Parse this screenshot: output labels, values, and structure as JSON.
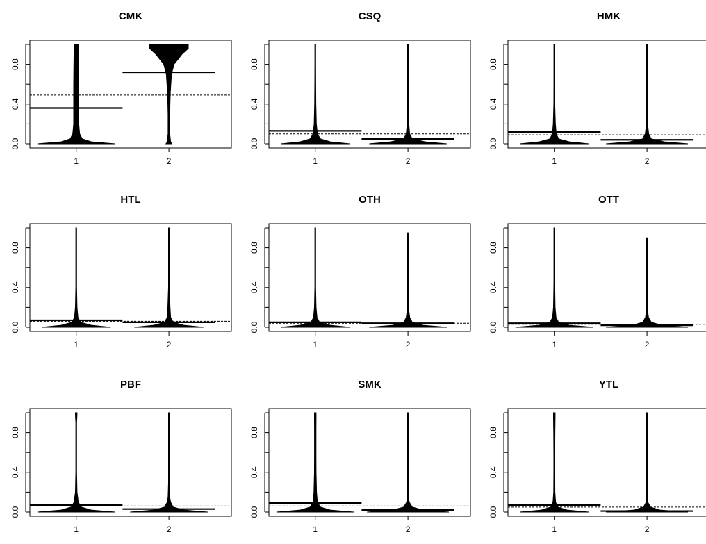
{
  "chart_data": [
    {
      "type": "beanplot",
      "title": "CMK",
      "categories": [
        "1",
        "2"
      ],
      "ylim": [
        0,
        1
      ],
      "yticks": [
        "0.0",
        "0.4",
        "0.8"
      ],
      "overall_mean": 0.49,
      "group_means": [
        0.36,
        0.72
      ],
      "grid": false,
      "series": [
        {
          "name": "",
          "category": "1",
          "max": 1.0,
          "density": [
            [
              0.0,
              0.9
            ],
            [
              0.02,
              0.35
            ],
            [
              0.05,
              0.14
            ],
            [
              0.1,
              0.08
            ],
            [
              0.2,
              0.06
            ],
            [
              0.4,
              0.06
            ],
            [
              0.6,
              0.06
            ],
            [
              0.8,
              0.055
            ],
            [
              0.95,
              0.05
            ],
            [
              1.0,
              0.05
            ]
          ]
        },
        {
          "name": "",
          "category": "2",
          "max": 1.0,
          "density": [
            [
              0.0,
              0.07
            ],
            [
              0.02,
              0.04
            ],
            [
              0.1,
              0.02
            ],
            [
              0.3,
              0.02
            ],
            [
              0.5,
              0.03
            ],
            [
              0.7,
              0.06
            ],
            [
              0.8,
              0.12
            ],
            [
              0.9,
              0.3
            ],
            [
              0.96,
              0.45
            ],
            [
              1.0,
              0.45
            ]
          ]
        }
      ]
    },
    {
      "type": "beanplot",
      "title": "CSQ",
      "categories": [
        "1",
        "2"
      ],
      "ylim": [
        0,
        1
      ],
      "yticks": [
        "0.0",
        "0.4",
        "0.8"
      ],
      "overall_mean": 0.1,
      "group_means": [
        0.13,
        0.05
      ],
      "grid": false,
      "series": [
        {
          "name": "",
          "category": "1",
          "max": 1.0,
          "density": [
            [
              0.0,
              0.8
            ],
            [
              0.02,
              0.35
            ],
            [
              0.05,
              0.12
            ],
            [
              0.1,
              0.05
            ],
            [
              0.2,
              0.025
            ],
            [
              0.4,
              0.015
            ],
            [
              0.6,
              0.012
            ],
            [
              0.8,
              0.01
            ],
            [
              1.0,
              0.01
            ]
          ]
        },
        {
          "name": "",
          "category": "2",
          "max": 1.0,
          "density": [
            [
              0.0,
              0.9
            ],
            [
              0.02,
              0.4
            ],
            [
              0.05,
              0.1
            ],
            [
              0.1,
              0.04
            ],
            [
              0.2,
              0.02
            ],
            [
              0.3,
              0.005
            ],
            [
              0.6,
              0.003
            ],
            [
              1.0,
              0.003
            ]
          ]
        }
      ]
    },
    {
      "type": "beanplot",
      "title": "HMK",
      "categories": [
        "1",
        "2"
      ],
      "ylim": [
        0,
        1
      ],
      "yticks": [
        "0.0",
        "0.4",
        "0.8"
      ],
      "overall_mean": 0.09,
      "group_means": [
        0.12,
        0.04
      ],
      "grid": false,
      "series": [
        {
          "name": "",
          "category": "1",
          "max": 1.0,
          "density": [
            [
              0.0,
              0.8
            ],
            [
              0.02,
              0.35
            ],
            [
              0.05,
              0.1
            ],
            [
              0.1,
              0.045
            ],
            [
              0.2,
              0.025
            ],
            [
              0.4,
              0.012
            ],
            [
              0.6,
              0.01
            ],
            [
              0.9,
              0.01
            ],
            [
              1.0,
              0.01
            ]
          ]
        },
        {
          "name": "",
          "category": "2",
          "max": 1.0,
          "density": [
            [
              0.0,
              0.95
            ],
            [
              0.02,
              0.4
            ],
            [
              0.05,
              0.1
            ],
            [
              0.1,
              0.04
            ],
            [
              0.2,
              0.015
            ],
            [
              0.3,
              0.005
            ],
            [
              0.6,
              0.003
            ],
            [
              1.0,
              0.003
            ]
          ]
        }
      ]
    },
    {
      "type": "beanplot",
      "title": "HTL",
      "categories": [
        "1",
        "2"
      ],
      "ylim": [
        0,
        1
      ],
      "yticks": [
        "0.0",
        "0.4",
        "0.8"
      ],
      "overall_mean": 0.06,
      "group_means": [
        0.07,
        0.05
      ],
      "grid": false,
      "series": [
        {
          "name": "",
          "category": "1",
          "max": 1.0,
          "density": [
            [
              0.0,
              0.8
            ],
            [
              0.02,
              0.35
            ],
            [
              0.05,
              0.1
            ],
            [
              0.1,
              0.04
            ],
            [
              0.2,
              0.02
            ],
            [
              0.4,
              0.008
            ],
            [
              0.6,
              0.004
            ],
            [
              1.0,
              0.004
            ]
          ]
        },
        {
          "name": "",
          "category": "2",
          "max": 1.0,
          "density": [
            [
              0.0,
              0.8
            ],
            [
              0.02,
              0.35
            ],
            [
              0.05,
              0.1
            ],
            [
              0.1,
              0.04
            ],
            [
              0.2,
              0.025
            ],
            [
              0.4,
              0.01
            ],
            [
              0.6,
              0.004
            ],
            [
              1.0,
              0.004
            ]
          ]
        }
      ]
    },
    {
      "type": "beanplot",
      "title": "OTH",
      "categories": [
        "1",
        "2"
      ],
      "ylim": [
        0,
        1
      ],
      "yticks": [
        "0.0",
        "0.4",
        "0.8"
      ],
      "overall_mean": 0.04,
      "group_means": [
        0.05,
        0.04
      ],
      "grid": false,
      "series": [
        {
          "name": "",
          "category": "1",
          "max": 1.0,
          "density": [
            [
              0.0,
              0.8
            ],
            [
              0.02,
              0.35
            ],
            [
              0.05,
              0.1
            ],
            [
              0.1,
              0.04
            ],
            [
              0.2,
              0.02
            ],
            [
              0.4,
              0.01
            ],
            [
              0.55,
              0.008
            ],
            [
              0.7,
              0.004
            ],
            [
              1.0,
              0.004
            ]
          ]
        },
        {
          "name": "",
          "category": "2",
          "max": 0.95,
          "density": [
            [
              0.0,
              0.9
            ],
            [
              0.02,
              0.35
            ],
            [
              0.05,
              0.1
            ],
            [
              0.1,
              0.04
            ],
            [
              0.17,
              0.02
            ],
            [
              0.3,
              0.005
            ],
            [
              0.6,
              0.003
            ],
            [
              0.95,
              0.003
            ]
          ]
        }
      ]
    },
    {
      "type": "beanplot",
      "title": "OTT",
      "categories": [
        "1",
        "2"
      ],
      "ylim": [
        0,
        1
      ],
      "yticks": [
        "0.0",
        "0.4",
        "0.8"
      ],
      "overall_mean": 0.03,
      "group_means": [
        0.04,
        0.02
      ],
      "grid": false,
      "series": [
        {
          "name": "",
          "category": "1",
          "max": 1.0,
          "density": [
            [
              0.0,
              0.9
            ],
            [
              0.02,
              0.35
            ],
            [
              0.05,
              0.1
            ],
            [
              0.1,
              0.04
            ],
            [
              0.2,
              0.02
            ],
            [
              0.45,
              0.008
            ],
            [
              0.7,
              0.004
            ],
            [
              1.0,
              0.004
            ]
          ]
        },
        {
          "name": "",
          "category": "2",
          "max": 0.9,
          "density": [
            [
              0.0,
              0.95
            ],
            [
              0.02,
              0.35
            ],
            [
              0.05,
              0.1
            ],
            [
              0.1,
              0.035
            ],
            [
              0.15,
              0.02
            ],
            [
              0.3,
              0.005
            ],
            [
              0.6,
              0.003
            ],
            [
              0.9,
              0.003
            ]
          ]
        }
      ]
    },
    {
      "type": "beanplot",
      "title": "PBF",
      "categories": [
        "1",
        "2"
      ],
      "ylim": [
        0,
        1
      ],
      "yticks": [
        "0.0",
        "0.4",
        "0.8"
      ],
      "overall_mean": 0.06,
      "group_means": [
        0.07,
        0.03
      ],
      "grid": false,
      "series": [
        {
          "name": "",
          "category": "1",
          "max": 1.0,
          "density": [
            [
              0.0,
              0.9
            ],
            [
              0.02,
              0.35
            ],
            [
              0.05,
              0.12
            ],
            [
              0.1,
              0.05
            ],
            [
              0.2,
              0.02
            ],
            [
              0.4,
              0.006
            ],
            [
              0.9,
              0.006
            ],
            [
              0.98,
              0.02
            ],
            [
              1.0,
              0.02
            ]
          ]
        },
        {
          "name": "",
          "category": "2",
          "max": 1.0,
          "density": [
            [
              0.0,
              0.9
            ],
            [
              0.02,
              0.35
            ],
            [
              0.05,
              0.1
            ],
            [
              0.1,
              0.04
            ],
            [
              0.15,
              0.02
            ],
            [
              0.3,
              0.005
            ],
            [
              0.9,
              0.004
            ],
            [
              0.98,
              0.01
            ],
            [
              1.0,
              0.01
            ]
          ]
        }
      ]
    },
    {
      "type": "beanplot",
      "title": "SMK",
      "categories": [
        "1",
        "2"
      ],
      "ylim": [
        0,
        1
      ],
      "yticks": [
        "0.0",
        "0.4",
        "0.8"
      ],
      "overall_mean": 0.06,
      "group_means": [
        0.09,
        0.02
      ],
      "grid": false,
      "series": [
        {
          "name": "",
          "category": "1",
          "max": 1.0,
          "density": [
            [
              0.0,
              0.9
            ],
            [
              0.02,
              0.35
            ],
            [
              0.05,
              0.12
            ],
            [
              0.1,
              0.05
            ],
            [
              0.2,
              0.03
            ],
            [
              0.4,
              0.02
            ],
            [
              0.6,
              0.018
            ],
            [
              0.8,
              0.018
            ],
            [
              0.95,
              0.02
            ],
            [
              1.0,
              0.02
            ]
          ]
        },
        {
          "name": "",
          "category": "2",
          "max": 1.0,
          "density": [
            [
              0.0,
              0.95
            ],
            [
              0.02,
              0.35
            ],
            [
              0.05,
              0.1
            ],
            [
              0.1,
              0.03
            ],
            [
              0.15,
              0.01
            ],
            [
              0.3,
              0.004
            ],
            [
              0.6,
              0.003
            ],
            [
              1.0,
              0.003
            ]
          ]
        }
      ]
    },
    {
      "type": "beanplot",
      "title": "YTL",
      "categories": [
        "1",
        "2"
      ],
      "ylim": [
        0,
        1
      ],
      "yticks": [
        "0.0",
        "0.4",
        "0.8"
      ],
      "overall_mean": 0.05,
      "group_means": [
        0.07,
        0.01
      ],
      "grid": false,
      "series": [
        {
          "name": "",
          "category": "1",
          "max": 1.0,
          "density": [
            [
              0.0,
              0.8
            ],
            [
              0.02,
              0.3
            ],
            [
              0.05,
              0.08
            ],
            [
              0.1,
              0.03
            ],
            [
              0.2,
              0.015
            ],
            [
              0.4,
              0.012
            ],
            [
              0.6,
              0.012
            ],
            [
              0.8,
              0.015
            ],
            [
              0.95,
              0.02
            ],
            [
              1.0,
              0.02
            ]
          ]
        },
        {
          "name": "",
          "category": "2",
          "max": 1.0,
          "density": [
            [
              0.0,
              0.95
            ],
            [
              0.02,
              0.3
            ],
            [
              0.05,
              0.08
            ],
            [
              0.1,
              0.02
            ],
            [
              0.2,
              0.004
            ],
            [
              0.6,
              0.003
            ],
            [
              1.0,
              0.003
            ]
          ]
        }
      ]
    }
  ]
}
